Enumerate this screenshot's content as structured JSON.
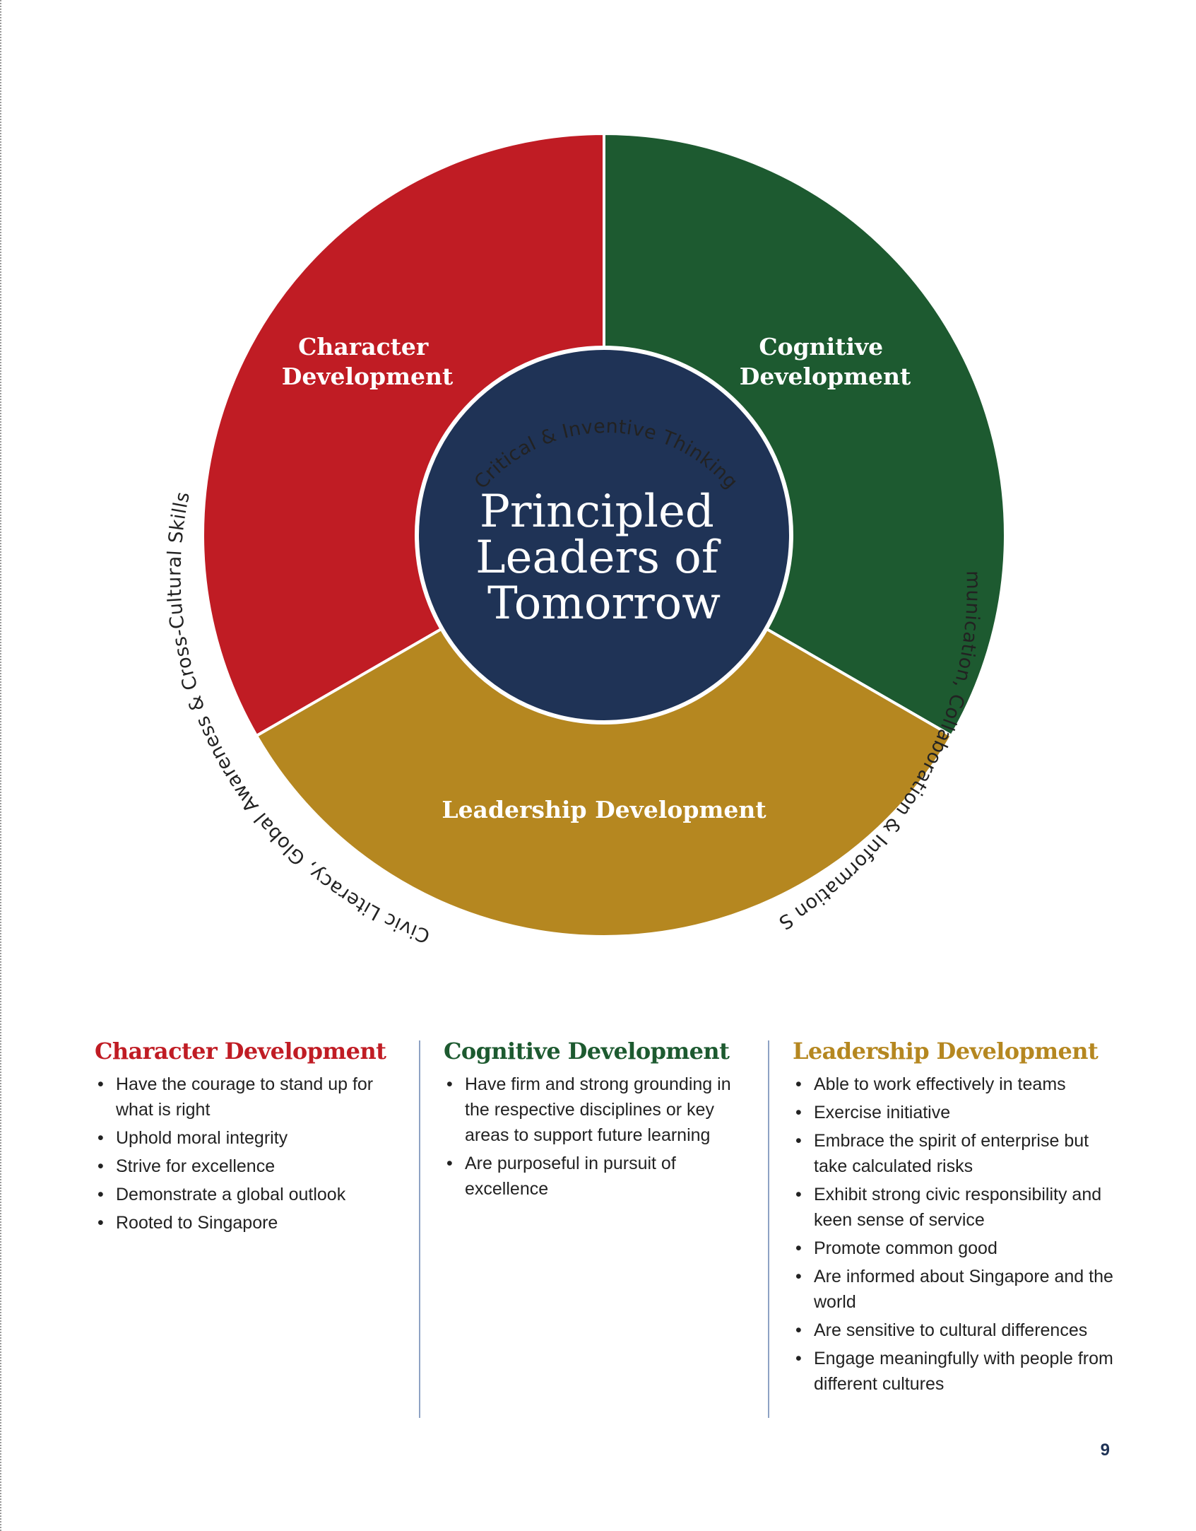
{
  "diagram": {
    "center_text": [
      "Principled",
      "Leaders of",
      "Tomorrow"
    ],
    "segments": [
      {
        "name": "Character Development",
        "lines": [
          "Character",
          "Development"
        ],
        "color": "#c01c24"
      },
      {
        "name": "Cognitive Development",
        "lines": [
          "Cognitive",
          "Development"
        ],
        "color": "#1d5a30"
      },
      {
        "name": "Leadership Development",
        "lines": [
          "Leadership Development"
        ],
        "color": "#b58720"
      }
    ],
    "center_color": "#1f3356",
    "ring_labels": {
      "top": "Critical & Inventive Thinking",
      "right": "Communication, Collaboration & Information Skills",
      "left": "Civic Literacy, Global Awareness & Cross-Cultural Skills"
    }
  },
  "columns": [
    {
      "title": "Character Development",
      "color": "#c01c24",
      "items": [
        "Have the courage to stand up for what is right",
        "Uphold moral integrity",
        "Strive for excellence",
        "Demonstrate a global outlook",
        "Rooted to Singapore"
      ]
    },
    {
      "title": "Cognitive Development",
      "color": "#1d5a30",
      "items": [
        "Have firm and strong grounding in the respective disciplines or key areas to support future learning",
        "Are purposeful in pursuit of excellence"
      ]
    },
    {
      "title": "Leadership Development",
      "color": "#b58720",
      "items": [
        "Able to work effectively in teams",
        "Exercise initiative",
        "Embrace the spirit of enterprise but take calculated risks",
        "Exhibit strong civic responsibility and keen sense of service",
        "Promote common good",
        "Are informed about Singapore and the world",
        "Are sensitive to cultural differences",
        "Engage meaningfully with people from different cultures"
      ]
    }
  ],
  "page_number": "9"
}
